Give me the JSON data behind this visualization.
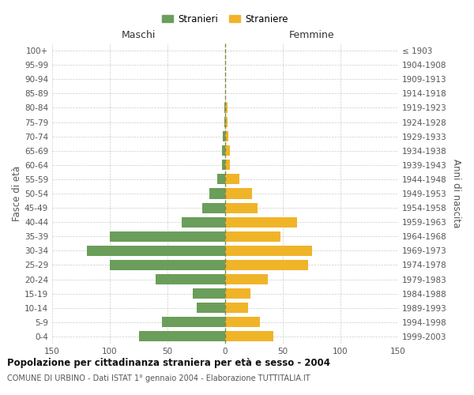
{
  "age_groups": [
    "0-4",
    "5-9",
    "10-14",
    "15-19",
    "20-24",
    "25-29",
    "30-34",
    "35-39",
    "40-44",
    "45-49",
    "50-54",
    "55-59",
    "60-64",
    "65-69",
    "70-74",
    "75-79",
    "80-84",
    "85-89",
    "90-94",
    "95-99",
    "100+"
  ],
  "birth_years": [
    "1999-2003",
    "1994-1998",
    "1989-1993",
    "1984-1988",
    "1979-1983",
    "1974-1978",
    "1969-1973",
    "1964-1968",
    "1959-1963",
    "1954-1958",
    "1949-1953",
    "1944-1948",
    "1939-1943",
    "1934-1938",
    "1929-1933",
    "1924-1928",
    "1919-1923",
    "1914-1918",
    "1909-1913",
    "1904-1908",
    "≤ 1903"
  ],
  "males": [
    75,
    55,
    25,
    28,
    60,
    100,
    120,
    100,
    38,
    20,
    14,
    7,
    3,
    3,
    2,
    1,
    1,
    0,
    0,
    0,
    0
  ],
  "females": [
    42,
    30,
    20,
    22,
    37,
    72,
    75,
    48,
    62,
    28,
    23,
    12,
    4,
    4,
    3,
    2,
    2,
    0,
    0,
    0,
    0
  ],
  "male_color": "#6a9e5a",
  "female_color": "#f0b429",
  "center_line_color": "#888844",
  "grid_color": "#cccccc",
  "background_color": "#ffffff",
  "title": "Popolazione per cittadinanza straniera per età e sesso - 2004",
  "subtitle": "COMUNE DI URBINO - Dati ISTAT 1° gennaio 2004 - Elaborazione TUTTITALIA.IT",
  "xlabel_left": "Maschi",
  "xlabel_right": "Femmine",
  "ylabel_left": "Fasce di età",
  "ylabel_right": "Anni di nascita",
  "xlim": 150,
  "xticks": [
    -150,
    -100,
    -50,
    0,
    50,
    100,
    150
  ],
  "xticklabels": [
    "150",
    "100",
    "50",
    "0",
    "50",
    "100",
    "150"
  ],
  "legend_stranieri": "Stranieri",
  "legend_straniere": "Straniere"
}
